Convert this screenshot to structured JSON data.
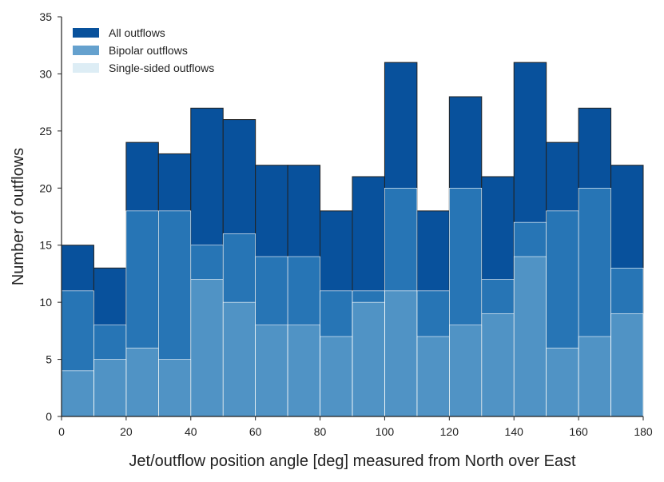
{
  "chart_data": {
    "type": "bar",
    "subtype": "stacked-histogram",
    "title": "",
    "xlabel": "Jet/outflow position angle [deg] measured from North over East",
    "ylabel": "Number of outflows",
    "xlim": [
      0,
      180
    ],
    "ylim": [
      0,
      35
    ],
    "bin_width": 10,
    "bin_edges": [
      0,
      10,
      20,
      30,
      40,
      50,
      60,
      70,
      80,
      90,
      100,
      110,
      120,
      130,
      140,
      150,
      160,
      170,
      180
    ],
    "x_ticks": [
      "0",
      "20",
      "40",
      "60",
      "80",
      "100",
      "120",
      "140",
      "160",
      "180"
    ],
    "y_ticks": [
      "0",
      "5",
      "10",
      "15",
      "20",
      "25",
      "30",
      "35"
    ],
    "grid": false,
    "legend_position": "top-left",
    "series": [
      {
        "name": "All outflows",
        "color": "#08519c",
        "values": [
          15,
          13,
          24,
          23,
          27,
          26,
          22,
          22,
          18,
          21,
          31,
          18,
          28,
          21,
          31,
          24,
          27,
          22
        ]
      },
      {
        "name": "Bipolar outflows",
        "color": "#3182bd",
        "values": [
          11,
          8,
          18,
          18,
          15,
          16,
          14,
          14,
          11,
          11,
          20,
          11,
          20,
          12,
          17,
          18,
          20,
          13
        ]
      },
      {
        "name": "Single-sided outflows",
        "color": "#9ecae1",
        "values": [
          4,
          5,
          6,
          5,
          12,
          10,
          8,
          8,
          7,
          10,
          11,
          7,
          8,
          9,
          14,
          6,
          7,
          9
        ]
      }
    ]
  }
}
